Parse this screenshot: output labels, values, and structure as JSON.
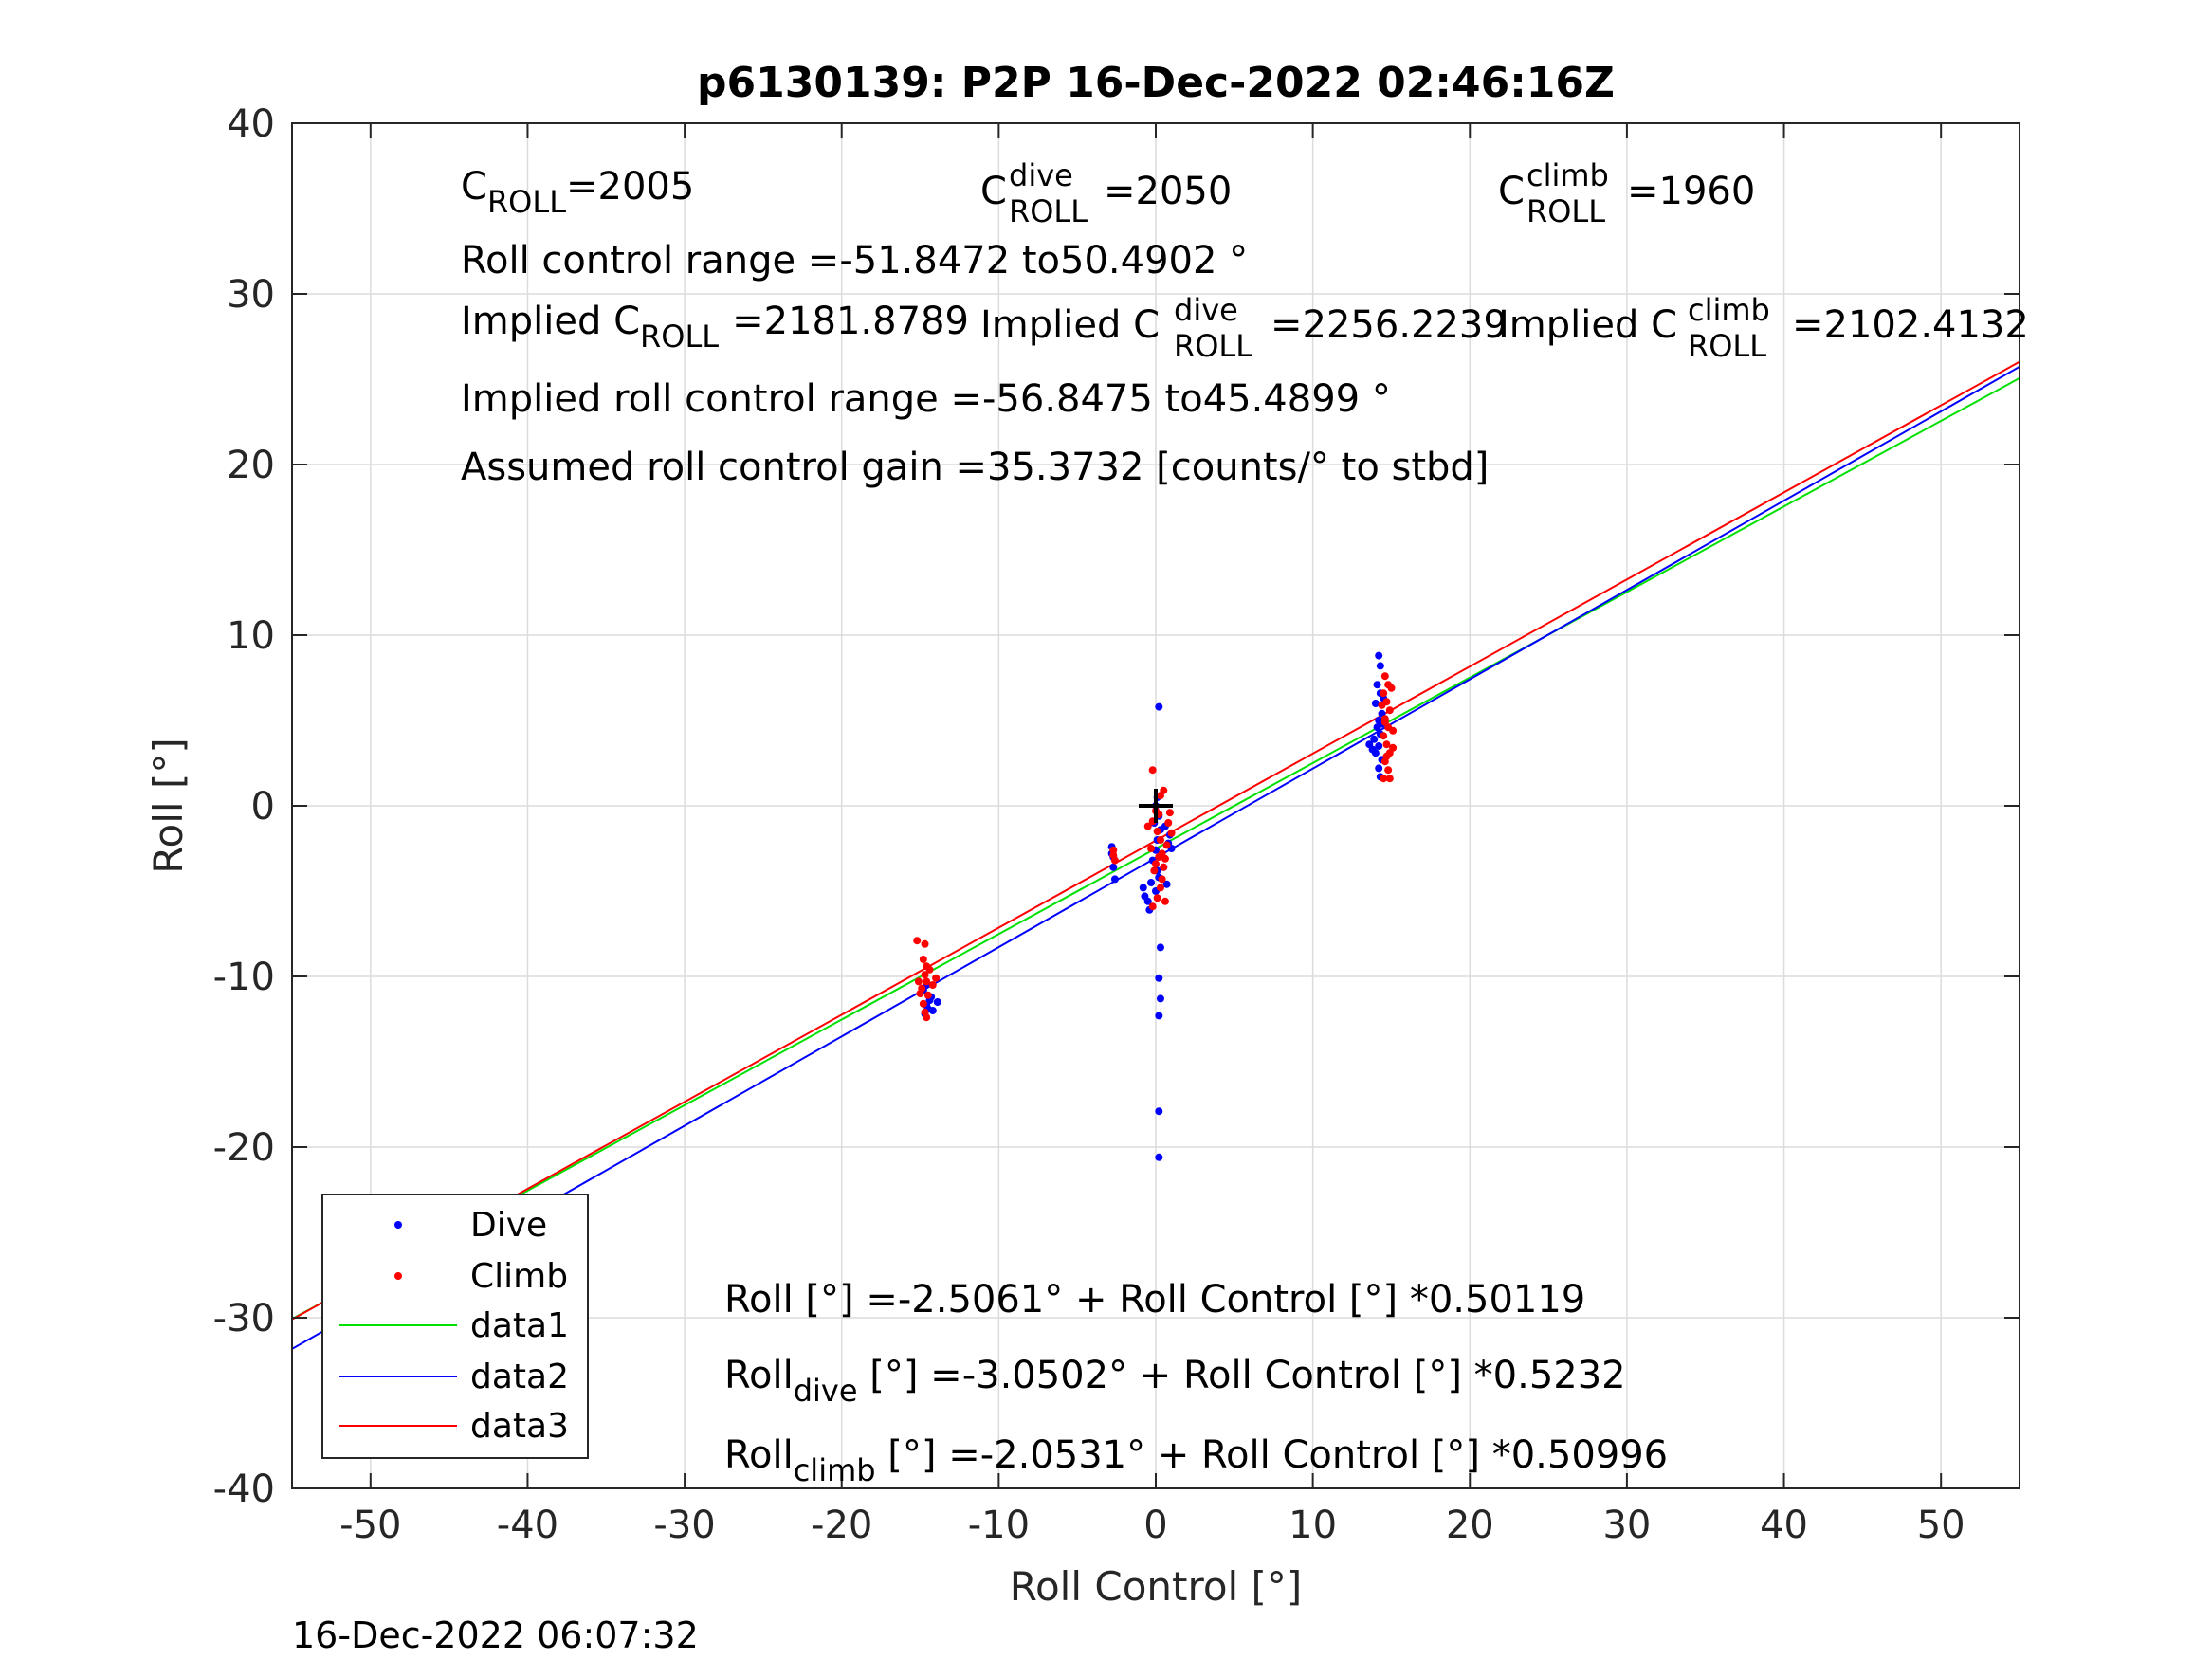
{
  "chart_data": {
    "type": "scatter",
    "title": "p6130139: P2P 16-Dec-2022 02:46:16Z",
    "xlabel": "Roll Control [°]",
    "ylabel": "Roll [°]",
    "xlim": [
      -55,
      55
    ],
    "ylim": [
      -40,
      40
    ],
    "grid": true,
    "legend_position": "bottom-left",
    "x_ticks": [
      -50,
      -40,
      -30,
      -20,
      -10,
      0,
      10,
      20,
      30,
      40,
      50
    ],
    "y_ticks": [
      -40,
      -30,
      -20,
      -10,
      0,
      10,
      20,
      30,
      40
    ],
    "timestamp": "16-Dec-2022 06:07:32",
    "legend": [
      "Dive",
      "Climb",
      "data1",
      "data2",
      "data3"
    ],
    "annotations": {
      "c_roll_base": "C",
      "c_roll_sub": "ROLL",
      "c_roll_value": "=2005",
      "c_dive_sup": "dive",
      "c_dive_value": "=2050",
      "c_climb_sup": "climb",
      "c_climb_value": "=1960",
      "roll_control_range": "Roll control range =-51.8472 to50.4902 °",
      "implied_prefix": "Implied C",
      "implied_c_roll_value": "=2181.8789",
      "implied_c_dive_value": "=2256.2239",
      "implied_c_climb_value": "=2102.4132",
      "implied_range": "Implied roll control range =-56.8475 to45.4899 °",
      "gain": "Assumed roll control gain =35.3732 [counts/° to stbd]",
      "fit_all": "Roll [°] =-2.5061° + Roll Control [°] *0.50119",
      "fit_dive_pre": "Roll",
      "fit_dive_sub": "dive",
      "fit_dive_post": " [°] =-3.0502° + Roll Control [°] *0.5232",
      "fit_climb_pre": "Roll",
      "fit_climb_sub": "climb",
      "fit_climb_post": " [°] =-2.0531° + Roll Control [°] *0.50996"
    },
    "series": [
      {
        "name": "Dive",
        "kind": "scatter",
        "color": "#0000ff",
        "points": [
          [
            -14.7,
            -12.2
          ],
          [
            -14.6,
            -11.7
          ],
          [
            -14.4,
            -11.4
          ],
          [
            -14.5,
            -11.9
          ],
          [
            -14.8,
            -10.8
          ],
          [
            -14.3,
            -11.2
          ],
          [
            -13.9,
            -11.5
          ],
          [
            -14.6,
            -10.5
          ],
          [
            -14.2,
            -12.0
          ],
          [
            -2.8,
            -2.4
          ],
          [
            -2.7,
            -3.0
          ],
          [
            -2.7,
            -3.6
          ],
          [
            -2.6,
            -4.3
          ],
          [
            -2.8,
            -2.8
          ],
          [
            -0.8,
            -4.8
          ],
          [
            -0.7,
            -5.3
          ],
          [
            -0.3,
            -4.5
          ],
          [
            -0.5,
            -5.6
          ],
          [
            -0.4,
            -6.1
          ],
          [
            0.0,
            -5.0
          ],
          [
            0.2,
            -4.2
          ],
          [
            0.1,
            -3.8
          ],
          [
            -0.2,
            -3.2
          ],
          [
            0.0,
            -2.6
          ],
          [
            0.1,
            -2.0
          ],
          [
            0.3,
            -1.4
          ],
          [
            -0.1,
            -1.0
          ],
          [
            0.2,
            -0.6
          ],
          [
            0.1,
            0.5
          ],
          [
            0.0,
            0.0
          ],
          [
            0.2,
            5.8
          ],
          [
            0.3,
            -8.3
          ],
          [
            0.2,
            -10.1
          ],
          [
            0.3,
            -11.3
          ],
          [
            0.2,
            -12.3
          ],
          [
            0.2,
            -17.9
          ],
          [
            0.2,
            -20.6
          ],
          [
            0.6,
            -1.2
          ],
          [
            0.8,
            -2.2
          ],
          [
            0.5,
            -3.6
          ],
          [
            0.7,
            -4.6
          ],
          [
            0.9,
            -1.7
          ],
          [
            1.0,
            -2.5
          ],
          [
            14.2,
            8.8
          ],
          [
            14.3,
            8.2
          ],
          [
            14.1,
            7.1
          ],
          [
            14.3,
            6.6
          ],
          [
            14.0,
            6.0
          ],
          [
            14.4,
            5.4
          ],
          [
            14.2,
            5.0
          ],
          [
            14.1,
            4.6
          ],
          [
            14.3,
            4.2
          ],
          [
            13.9,
            3.9
          ],
          [
            14.2,
            3.5
          ],
          [
            14.0,
            3.1
          ],
          [
            13.8,
            3.3
          ],
          [
            14.4,
            2.7
          ],
          [
            14.2,
            2.2
          ],
          [
            14.3,
            1.7
          ],
          [
            13.6,
            3.6
          ],
          [
            14.5,
            6.3
          ],
          [
            14.4,
            4.8
          ]
        ]
      },
      {
        "name": "Climb",
        "kind": "scatter",
        "color": "#ff0000",
        "points": [
          [
            -15.2,
            -7.9
          ],
          [
            -14.7,
            -8.1
          ],
          [
            -14.8,
            -9.0
          ],
          [
            -14.6,
            -9.4
          ],
          [
            -14.7,
            -9.9
          ],
          [
            -15.1,
            -10.3
          ],
          [
            -14.9,
            -10.7
          ],
          [
            -14.6,
            -10.3
          ],
          [
            -14.5,
            -11.1
          ],
          [
            -14.8,
            -11.6
          ],
          [
            -14.7,
            -12.1
          ],
          [
            -14.6,
            -12.4
          ],
          [
            -14.0,
            -10.1
          ],
          [
            -14.2,
            -10.5
          ],
          [
            -15.0,
            -11.0
          ],
          [
            -14.4,
            -9.6
          ],
          [
            -2.7,
            -2.6
          ],
          [
            -2.6,
            -3.2
          ],
          [
            -2.7,
            -2.9
          ],
          [
            -0.2,
            2.1
          ],
          [
            0.3,
            0.6
          ],
          [
            0.5,
            0.9
          ],
          [
            0.0,
            -0.3
          ],
          [
            -0.2,
            -0.9
          ],
          [
            0.1,
            -1.5
          ],
          [
            0.3,
            -2.0
          ],
          [
            -0.3,
            -2.5
          ],
          [
            0.2,
            -3.0
          ],
          [
            0.0,
            -3.4
          ],
          [
            -0.1,
            -3.8
          ],
          [
            0.4,
            -4.3
          ],
          [
            0.3,
            -4.8
          ],
          [
            0.1,
            -5.4
          ],
          [
            -0.2,
            -5.9
          ],
          [
            0.6,
            -5.6
          ],
          [
            0.8,
            -1.0
          ],
          [
            1.0,
            -1.6
          ],
          [
            0.7,
            -2.3
          ],
          [
            0.5,
            -3.6
          ],
          [
            0.9,
            -0.4
          ],
          [
            -0.5,
            -1.2
          ],
          [
            0.2,
            -0.5
          ],
          [
            0.4,
            -2.8
          ],
          [
            0.6,
            -3.1
          ],
          [
            14.6,
            7.6
          ],
          [
            14.8,
            7.1
          ],
          [
            14.5,
            6.6
          ],
          [
            14.7,
            6.1
          ],
          [
            14.9,
            5.6
          ],
          [
            14.6,
            5.1
          ],
          [
            14.8,
            4.6
          ],
          [
            14.5,
            4.1
          ],
          [
            14.7,
            3.6
          ],
          [
            14.9,
            3.1
          ],
          [
            14.6,
            2.6
          ],
          [
            14.8,
            2.1
          ],
          [
            14.5,
            1.6
          ],
          [
            14.9,
            1.6
          ],
          [
            15.1,
            4.4
          ],
          [
            14.4,
            5.9
          ],
          [
            15.0,
            6.9
          ],
          [
            14.7,
            2.9
          ],
          [
            15.1,
            3.4
          ],
          [
            14.6,
            4.9
          ]
        ]
      },
      {
        "name": "data1",
        "kind": "line",
        "color": "#00e000",
        "x": [
          -55,
          55
        ],
        "y": [
          -30.07,
          25.06
        ]
      },
      {
        "name": "data2",
        "kind": "line",
        "color": "#0000ff",
        "x": [
          -55,
          55
        ],
        "y": [
          -31.83,
          25.73
        ]
      },
      {
        "name": "data3",
        "kind": "line",
        "color": "#ff0000",
        "x": [
          -55,
          55
        ],
        "y": [
          -30.1,
          26.02
        ]
      }
    ],
    "mean_marker": {
      "x": 0.0,
      "y": 0.0,
      "color": "#000000"
    }
  }
}
